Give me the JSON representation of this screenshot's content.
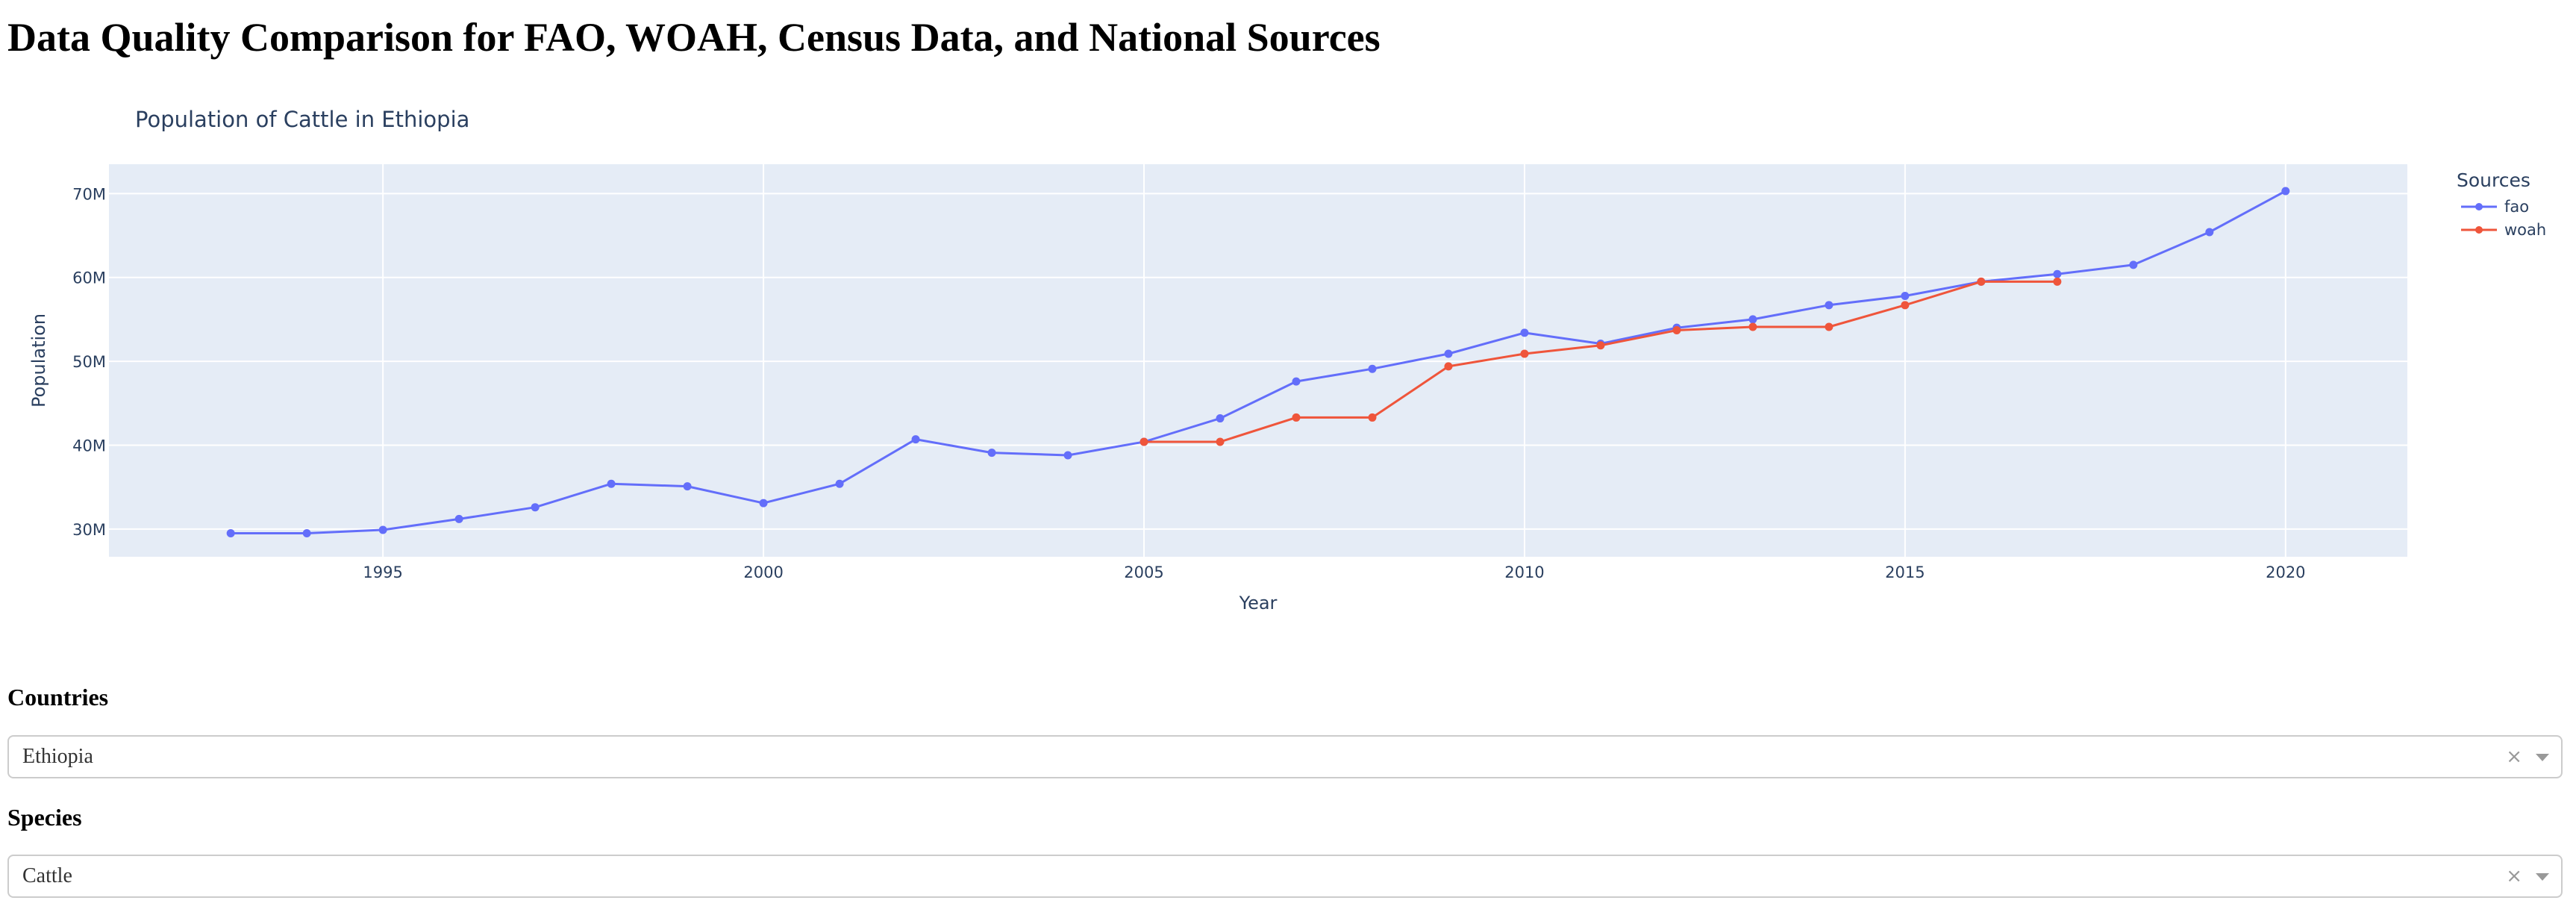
{
  "page": {
    "title": "Data Quality Comparison for FAO, WOAH, Census Data, and National Sources"
  },
  "filters": {
    "countries": {
      "label": "Countries",
      "selected": "Ethiopia",
      "clear_glyph": "×"
    },
    "species": {
      "label": "Species",
      "selected": "Cattle",
      "clear_glyph": "×"
    }
  },
  "colors": {
    "plot_background": "#E5ECF6",
    "grid": "#ffffff",
    "text": "#2a3f5f",
    "fao": "#636EFA",
    "woah": "#EF553B"
  },
  "icons": {
    "clear": "close-icon",
    "dropdown": "chevron-down-icon"
  },
  "chart_data": {
    "type": "line",
    "title": "Population of Cattle in Ethiopia",
    "xlabel": "Year",
    "ylabel": "Population",
    "xlim": [
      1991.4,
      2021.6
    ],
    "ylim": [
      26700000,
      73500000
    ],
    "x_ticks": [
      1995,
      2000,
      2005,
      2010,
      2015,
      2020
    ],
    "y_ticks": [
      {
        "value": 30000000,
        "label": "30M"
      },
      {
        "value": 40000000,
        "label": "40M"
      },
      {
        "value": 50000000,
        "label": "50M"
      },
      {
        "value": 60000000,
        "label": "60M"
      },
      {
        "value": 70000000,
        "label": "70M"
      }
    ],
    "grid": true,
    "legend": {
      "title": "Sources",
      "placement": "top-right"
    },
    "series": [
      {
        "name": "fao",
        "color": "#636EFA",
        "x": [
          1993,
          1994,
          1995,
          1996,
          1997,
          1998,
          1999,
          2000,
          2001,
          2002,
          2003,
          2004,
          2005,
          2006,
          2007,
          2008,
          2009,
          2010,
          2011,
          2012,
          2013,
          2014,
          2015,
          2016,
          2017,
          2018,
          2019,
          2020
        ],
        "y": [
          29500000,
          29500000,
          29900000,
          31200000,
          32600000,
          35400000,
          35100000,
          33100000,
          35400000,
          40700000,
          39100000,
          38800000,
          40400000,
          43200000,
          47600000,
          49100000,
          50900000,
          53400000,
          52100000,
          54000000,
          55000000,
          56700000,
          57800000,
          59500000,
          60400000,
          61500000,
          65400000,
          70300000
        ]
      },
      {
        "name": "woah",
        "color": "#EF553B",
        "x": [
          2005,
          2006,
          2007,
          2008,
          2009,
          2010,
          2011,
          2012,
          2013,
          2014,
          2015,
          2016,
          2017
        ],
        "y": [
          40400000,
          40400000,
          43300000,
          43300000,
          49400000,
          50900000,
          51900000,
          53700000,
          54100000,
          54100000,
          56700000,
          59500000,
          59500000
        ]
      }
    ]
  }
}
